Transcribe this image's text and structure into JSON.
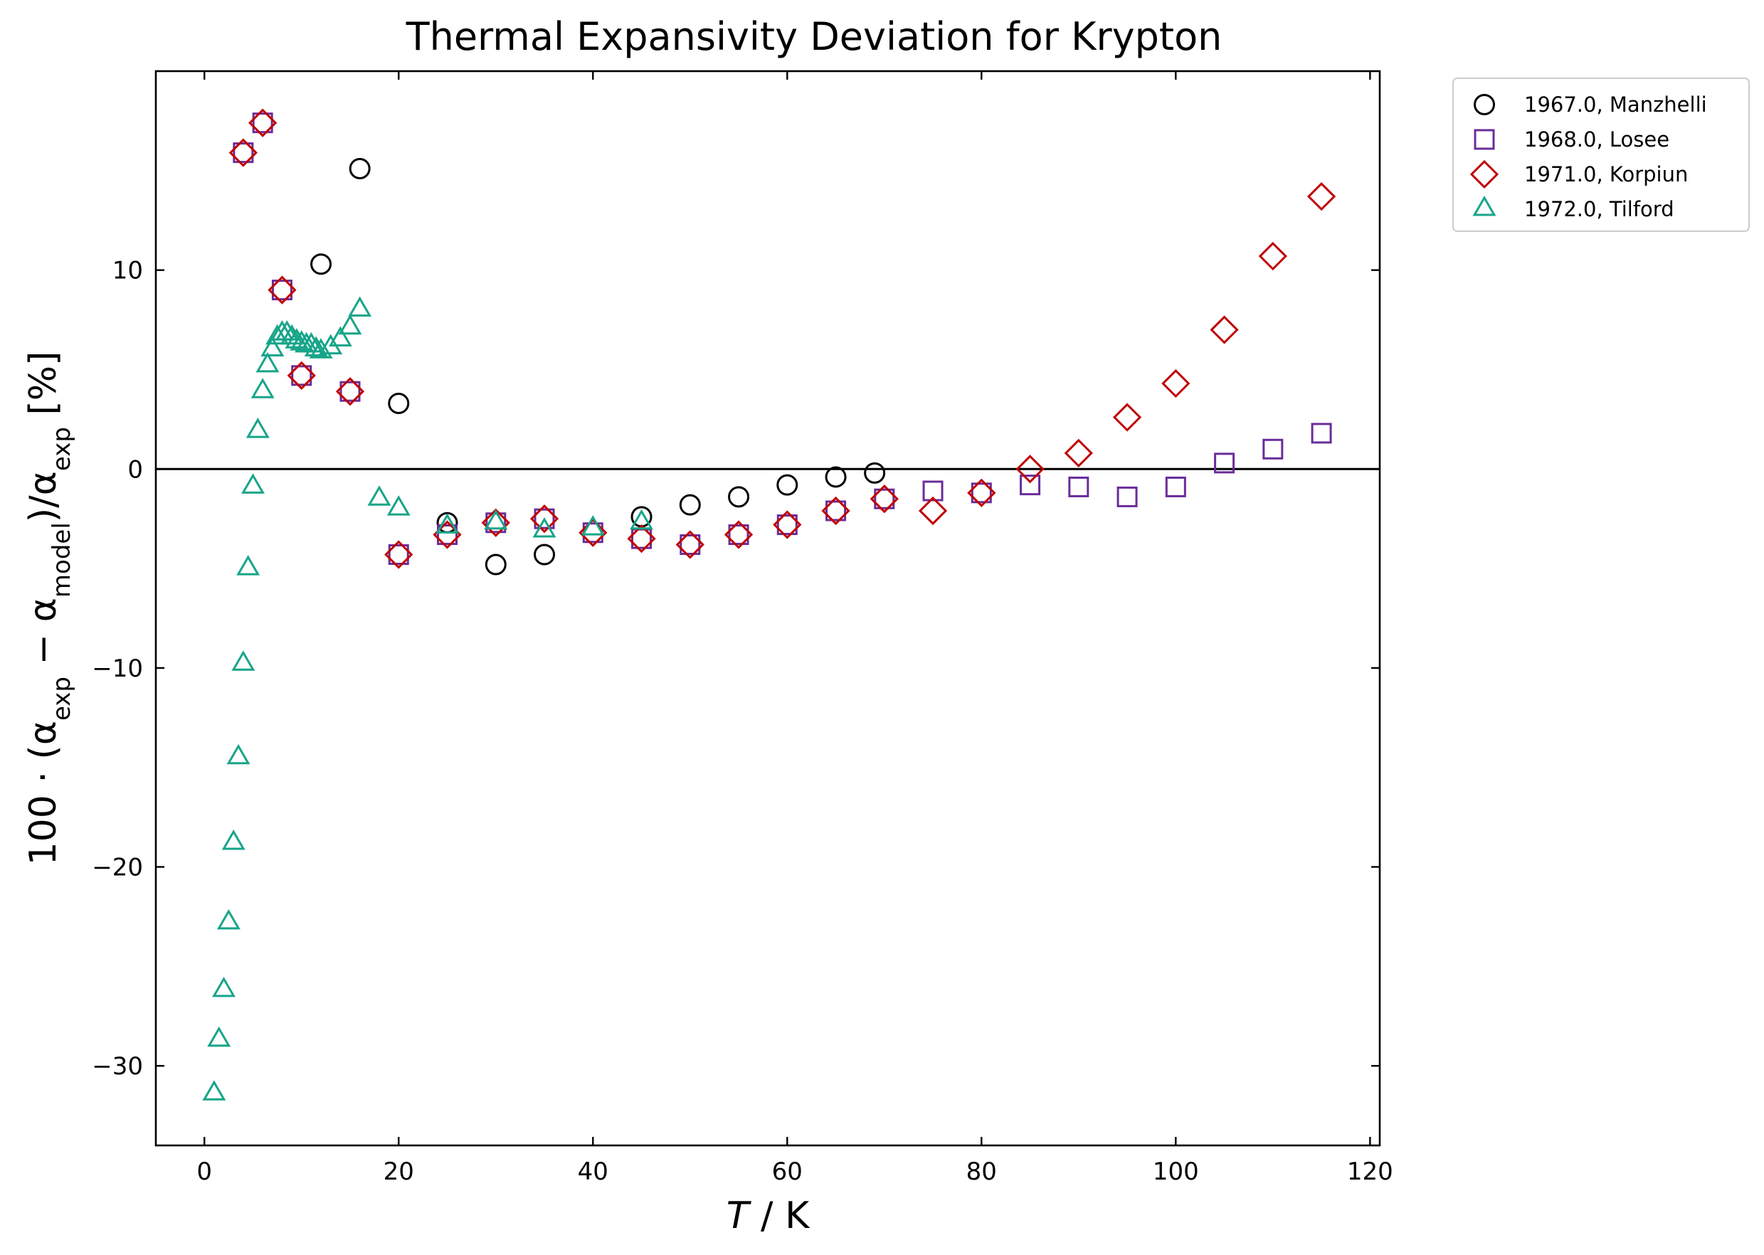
{
  "chart_data": {
    "type": "scatter",
    "title": "Thermal Expansivity Deviation for Krypton",
    "xlabel": {
      "main": "T",
      "rest": " / K"
    },
    "ylabel": {
      "prefix": "100 · (α",
      "sub1": "exp",
      "mid1": " − α",
      "sub2": "model",
      "mid2": ")/α",
      "sub3": "exp",
      "suffix": " [%]"
    },
    "xlim": [
      -5,
      121
    ],
    "ylim": [
      -34,
      20
    ],
    "xticks": [
      0,
      20,
      40,
      60,
      80,
      100,
      120
    ],
    "yticks": [
      -30,
      -20,
      -10,
      0,
      10
    ],
    "xtick_labels": [
      "0",
      "20",
      "40",
      "60",
      "80",
      "100",
      "120"
    ],
    "ytick_labels": [
      "−30",
      "−20",
      "−10",
      "0",
      "10"
    ],
    "zero_line": 0,
    "grid": false,
    "legend_position": "outside-top-right",
    "series": [
      {
        "name": "1967.0, Manzhelli",
        "marker": "circle",
        "color": "#000000",
        "x": [
          12,
          16,
          20,
          25,
          30,
          35,
          45,
          50,
          55,
          60,
          65,
          69
        ],
        "y": [
          10.3,
          15.1,
          3.3,
          -2.7,
          -4.8,
          -4.3,
          -2.4,
          -1.8,
          -1.4,
          -0.8,
          -0.4,
          -0.2
        ]
      },
      {
        "name": "1968.0, Losee",
        "marker": "square",
        "color": "#6a2c9a",
        "x": [
          4,
          6,
          8,
          10,
          15,
          20,
          25,
          30,
          35,
          40,
          45,
          50,
          55,
          60,
          65,
          70,
          75,
          80,
          85,
          90,
          95,
          100,
          105,
          110,
          115
        ],
        "y": [
          15.9,
          17.4,
          9.0,
          4.7,
          3.9,
          -4.3,
          -3.3,
          -2.7,
          -2.5,
          -3.2,
          -3.5,
          -3.8,
          -3.3,
          -2.8,
          -2.1,
          -1.5,
          -1.1,
          -1.2,
          -0.8,
          -0.9,
          -1.4,
          -0.9,
          0.3,
          1.0,
          1.8
        ]
      },
      {
        "name": "1971.0, Korpiun",
        "marker": "diamond",
        "color": "#c00000",
        "x": [
          4,
          6,
          8,
          10,
          15,
          20,
          25,
          30,
          35,
          40,
          45,
          50,
          55,
          60,
          65,
          70,
          75,
          80,
          85,
          90,
          95,
          100,
          105,
          110,
          115
        ],
        "y": [
          15.9,
          17.4,
          9.0,
          4.7,
          3.9,
          -4.3,
          -3.3,
          -2.7,
          -2.5,
          -3.2,
          -3.5,
          -3.8,
          -3.3,
          -2.8,
          -2.1,
          -1.5,
          -2.1,
          -1.2,
          0.0,
          0.8,
          2.6,
          4.3,
          7.0,
          10.7,
          13.7
        ]
      },
      {
        "name": "1972.0, Tilford",
        "marker": "triangle",
        "color": "#17a589",
        "x": [
          1,
          1.5,
          2,
          2.5,
          3,
          3.5,
          4,
          4.5,
          5,
          5.5,
          6,
          6.5,
          7,
          7.5,
          8,
          8.5,
          9,
          9.5,
          10,
          10.5,
          11,
          11.5,
          12,
          13,
          14,
          15,
          16,
          18,
          20,
          25,
          30,
          35,
          40,
          45
        ],
        "y": [
          -31.4,
          -28.7,
          -26.2,
          -22.8,
          -18.8,
          -14.5,
          -9.8,
          -5.0,
          -0.9,
          1.9,
          3.9,
          5.2,
          6.0,
          6.6,
          6.8,
          6.8,
          6.6,
          6.4,
          6.3,
          6.2,
          6.2,
          6.0,
          5.9,
          6.1,
          6.5,
          7.1,
          8.0,
          -1.5,
          -2.0,
          -2.9,
          -2.7,
          -3.1,
          -3.0,
          -2.7
        ]
      }
    ]
  }
}
